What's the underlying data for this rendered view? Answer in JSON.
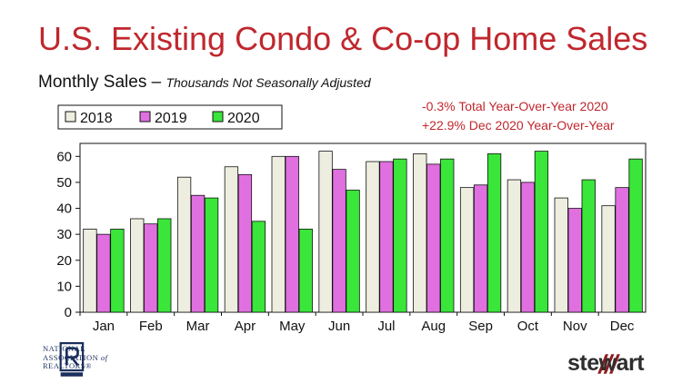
{
  "header": {
    "title": "U.S. Existing Condo & Co-op Home Sales",
    "subtitle_main": "Monthly Sales – ",
    "subtitle_note": "Thousands Not Seasonally Adjusted"
  },
  "annotations": [
    "-0.3% Total Year-Over-Year 2020",
    "+22.9% Dec 2020 Year-Over-Year"
  ],
  "logos": {
    "nar_line1": "NATIONAL",
    "nar_line2a": "ASSOCIATION ",
    "nar_line2b": "of",
    "nar_line3": "REALTORS®",
    "stewart": "stewart"
  },
  "colors": {
    "title": "#c0272d",
    "series_2018": "#eeeee0",
    "series_2019": "#e070e0",
    "series_2020": "#39e639"
  },
  "chart_data": {
    "type": "bar",
    "title": "",
    "xlabel": "",
    "ylabel": "",
    "ylim": [
      0,
      65
    ],
    "yticks": [
      0,
      10,
      20,
      30,
      40,
      50,
      60
    ],
    "grid": false,
    "legend_placement": "top-left",
    "categories": [
      "Jan",
      "Feb",
      "Mar",
      "Apr",
      "May",
      "Jun",
      "Jul",
      "Aug",
      "Sep",
      "Oct",
      "Nov",
      "Dec"
    ],
    "series": [
      {
        "name": "2018",
        "values": [
          32,
          36,
          52,
          56,
          60,
          62,
          58,
          61,
          48,
          51,
          44,
          41
        ]
      },
      {
        "name": "2019",
        "values": [
          30,
          34,
          45,
          53,
          60,
          55,
          58,
          57,
          49,
          50,
          40,
          48
        ]
      },
      {
        "name": "2020",
        "values": [
          32,
          36,
          44,
          35,
          32,
          47,
          59,
          59,
          61,
          62,
          51,
          59
        ]
      }
    ]
  }
}
